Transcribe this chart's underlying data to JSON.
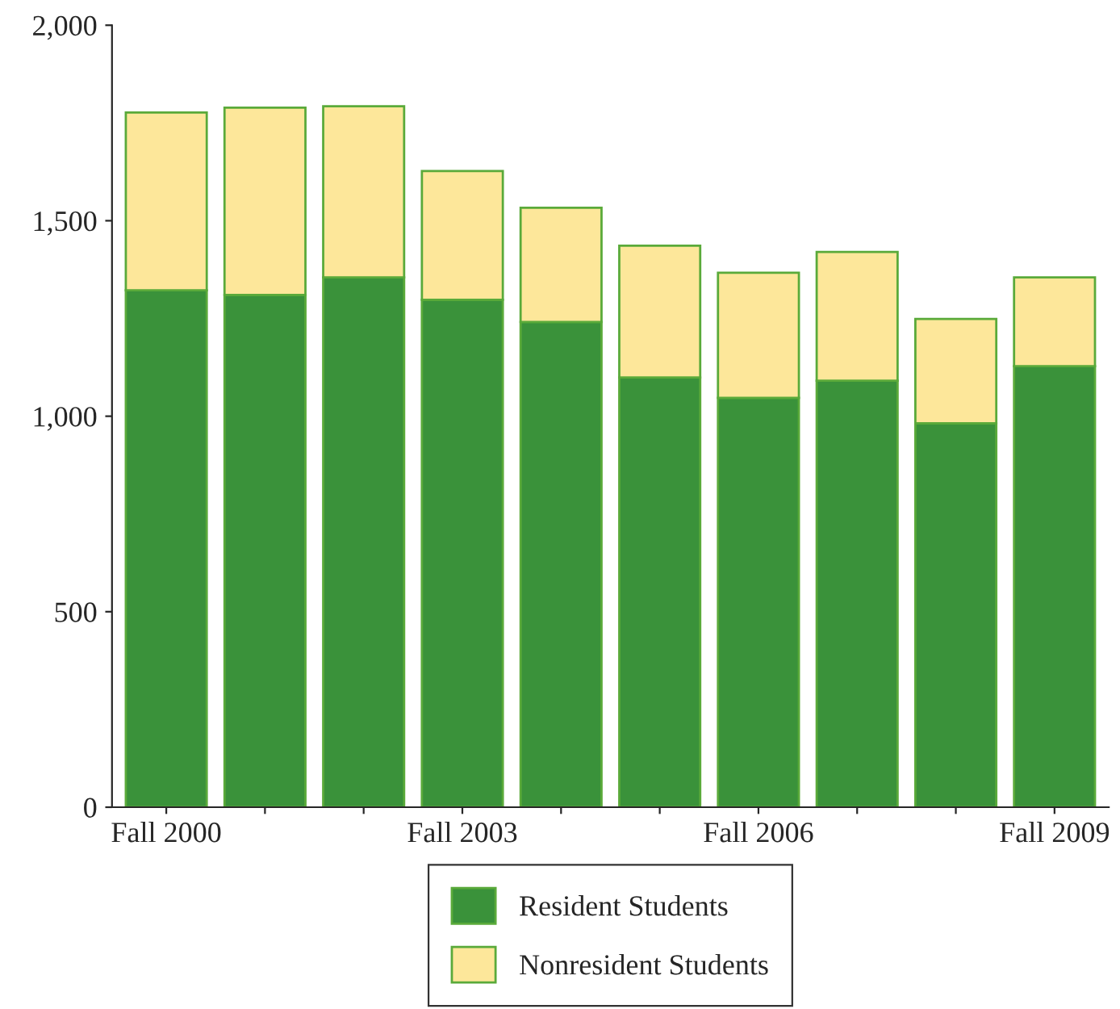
{
  "chart_data": {
    "type": "bar",
    "stacked": true,
    "categories": [
      "Fall 2000",
      null,
      null,
      "Fall 2003",
      null,
      null,
      "Fall 2006",
      null,
      null,
      "Fall 2009"
    ],
    "series": [
      {
        "name": "Resident Students",
        "color": "#3a923a",
        "values": [
          1322,
          1310,
          1355,
          1298,
          1241,
          1099,
          1047,
          1091,
          982,
          1128
        ]
      },
      {
        "name": "Nonresident Students",
        "color": "#fde79a",
        "values": [
          455,
          479,
          438,
          329,
          292,
          337,
          320,
          329,
          267,
          227
        ]
      }
    ],
    "ylim": [
      0,
      2000
    ],
    "yticks": [
      0,
      500,
      {
        "value": 1000,
        "label": "1,000"
      },
      {
        "value": 1500,
        "label": "1,500"
      },
      {
        "value": 2000,
        "label": "2,000"
      }
    ],
    "grid": false,
    "legend": "bottom"
  }
}
